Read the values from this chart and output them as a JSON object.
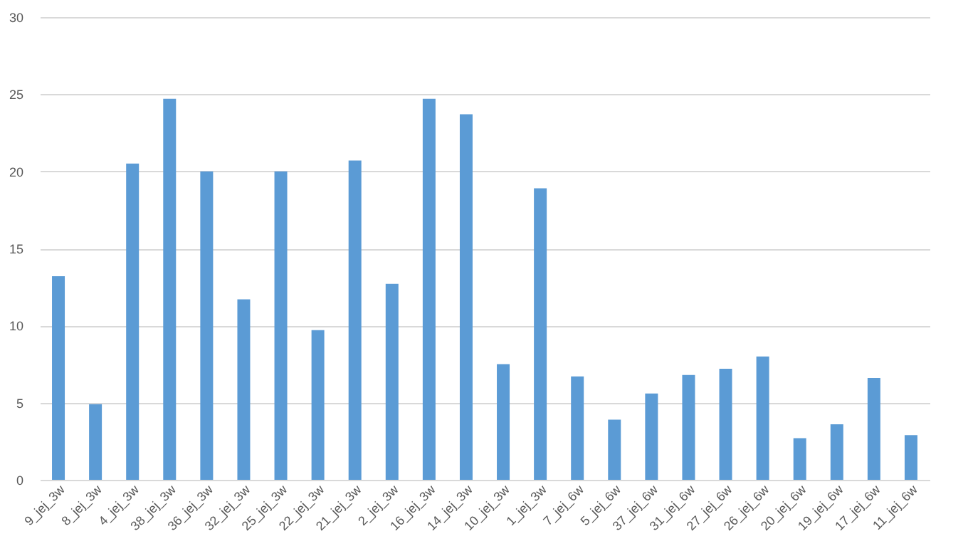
{
  "chart_data": {
    "type": "bar",
    "categories": [
      "9_jej_3w",
      "8_jej_3w",
      "4_jej_3w",
      "38_jej_3w",
      "36_jej_3w",
      "32_jej_3w",
      "25_jej_3w",
      "22_jej_3w",
      "21_jej_3w",
      "2_jej_3w",
      "16_jej_3w",
      "14_jej_3w",
      "10_jej_3w",
      "1_jej_3w",
      "7_jej_6w",
      "5_jej_6w",
      "37_jej_6w",
      "31_jej_6w",
      "27_jej_6w",
      "26_jej_6w",
      "20_jej_6w",
      "19_jej_6w",
      "17_jej_6w",
      "11_jej_6w"
    ],
    "values": [
      13.2,
      4.9,
      20.5,
      24.7,
      20.0,
      11.7,
      20.0,
      9.7,
      20.7,
      12.7,
      24.7,
      23.7,
      7.5,
      18.9,
      6.7,
      3.9,
      5.6,
      6.8,
      7.2,
      8.0,
      2.7,
      3.6,
      6.6,
      2.9
    ],
    "color": "#5b9bd5",
    "ylim": [
      0,
      30
    ],
    "yticks": [
      0,
      5,
      10,
      15,
      20,
      25,
      30
    ],
    "grid": "y"
  }
}
